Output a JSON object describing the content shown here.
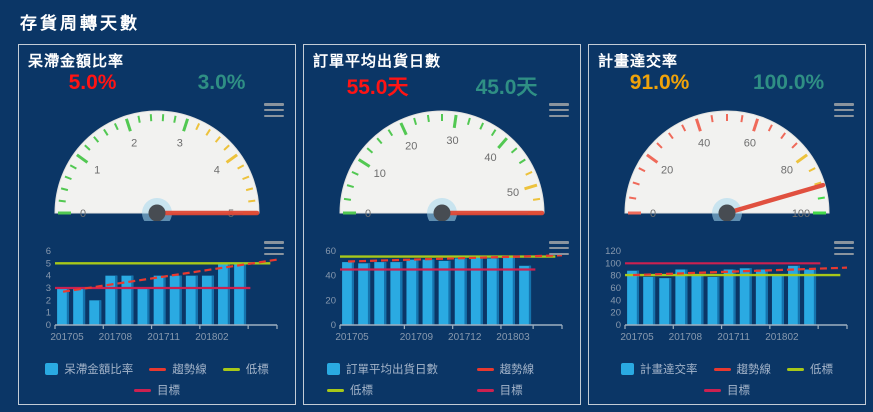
{
  "page": {
    "title": "存貨周轉天數"
  },
  "colors": {
    "background": "#0b3666",
    "panel_border": "#c3ccd6",
    "bar": "#2aaae2",
    "bar_edge": "#1573ad",
    "trend_line": "#e8392f",
    "target_line": "#cc2150",
    "low_line": "#a8c819",
    "axis_text": "#8899ae",
    "gauge_face": "#f2f2f0",
    "gauge_label": "#6e6e6e",
    "needle": "#e04836",
    "hub": "#474c52",
    "hub_halo": "#a8d8ee",
    "value_red": "#ff1414",
    "value_teal": "#2f8f84",
    "value_orange": "#f0a30a"
  },
  "icons": {
    "menu": "hamburger-menu-icon"
  },
  "chart_data": [
    {
      "title": "呆滯金額比率",
      "value_current": {
        "text": "5.0%",
        "color": "#ff1414"
      },
      "value_target": {
        "text": "3.0%",
        "color": "#2f8f84"
      },
      "gauge": {
        "type": "gauge",
        "min": 0,
        "max": 5,
        "value": 5.0,
        "major_step": 1,
        "minor_step": 0.2,
        "labels": [
          "0",
          "1",
          "2",
          "3",
          "4",
          "5"
        ],
        "zones": [
          {
            "to": 3.05,
            "color": "#52c852"
          },
          {
            "to": 5,
            "color": "#edc23c"
          }
        ]
      },
      "bar": {
        "type": "bar",
        "categories": [
          "201705",
          "201706",
          "201707",
          "201708",
          "201709",
          "201710",
          "201711",
          "201712",
          "201801",
          "201802",
          "201803",
          "201804"
        ],
        "values": [
          3,
          3,
          2,
          4,
          4,
          3,
          4,
          4,
          4,
          4,
          5,
          5
        ],
        "ylim": [
          0,
          6
        ],
        "yticks": [
          "0",
          "1",
          "2",
          "3",
          "4",
          "5",
          "6"
        ],
        "xlabels": [
          {
            "index": 0,
            "text": "201705"
          },
          {
            "index": 3,
            "text": "201708"
          },
          {
            "index": 6,
            "text": "201711"
          },
          {
            "index": 9,
            "text": "201802"
          }
        ],
        "target": 3,
        "low": 5,
        "trend": {
          "start": 2.7,
          "end": 5.3
        }
      },
      "legend": [
        {
          "label": "呆滯金額比率",
          "type": "square",
          "color": "#2aaae2"
        },
        {
          "label": "趨勢線",
          "type": "dash",
          "color": "#e8392f"
        },
        {
          "label": "低標",
          "type": "dash",
          "color": "#a8c819"
        },
        {
          "label": "目標",
          "type": "dash",
          "color": "#cc2150"
        }
      ]
    },
    {
      "title": "訂單平均出貨日數",
      "value_current": {
        "text": "55.0天",
        "color": "#ff1414"
      },
      "value_target": {
        "text": "45.0天",
        "color": "#2f8f84"
      },
      "gauge": {
        "type": "gauge",
        "min": 0,
        "max": 55,
        "value": 55.0,
        "major_step": 10,
        "minor_step": 2.5,
        "labels": [
          "0",
          "10",
          "20",
          "30",
          "40",
          "50"
        ],
        "zones": [
          {
            "to": 46,
            "color": "#52c852"
          },
          {
            "to": 55,
            "color": "#edc23c"
          }
        ]
      },
      "bar": {
        "type": "bar",
        "categories": [
          "201705",
          "201706",
          "201707",
          "201708",
          "201709",
          "201710",
          "201711",
          "201712",
          "201801",
          "201802",
          "201803",
          "201804"
        ],
        "values": [
          51,
          50,
          51,
          51,
          53,
          53,
          52,
          54,
          55,
          54,
          56,
          48
        ],
        "ylim": [
          0,
          60
        ],
        "yticks": [
          "0",
          "20",
          "40",
          "60"
        ],
        "xlabels": [
          {
            "index": 0,
            "text": "201705"
          },
          {
            "index": 4,
            "text": "201709"
          },
          {
            "index": 7,
            "text": "201712"
          },
          {
            "index": 10,
            "text": "201803"
          }
        ],
        "target": 45,
        "low": 55.5,
        "trend": {
          "start": 51.5,
          "end": 56.5
        }
      },
      "legend": [
        {
          "label": "訂單平均出貨日數",
          "type": "square",
          "color": "#2aaae2"
        },
        {
          "label": "趨勢線",
          "type": "dash",
          "color": "#e8392f"
        },
        {
          "label": "低標",
          "type": "dash",
          "color": "#a8c819"
        },
        {
          "label": "目標",
          "type": "dash",
          "color": "#cc2150"
        }
      ]
    },
    {
      "title": "計畫達交率",
      "value_current": {
        "text": "91.0%",
        "color": "#f0a30a"
      },
      "value_target": {
        "text": "100.0%",
        "color": "#2f8f84"
      },
      "gauge": {
        "type": "gauge",
        "min": 0,
        "max": 100,
        "value": 91.0,
        "major_step": 20,
        "minor_step": 5,
        "labels": [
          "0",
          "20",
          "40",
          "60",
          "80",
          "100"
        ],
        "zones": [
          {
            "to": 77,
            "color": "#ef6a5a"
          },
          {
            "to": 90,
            "color": "#edc23c"
          },
          {
            "to": 100,
            "color": "#43d94a"
          }
        ]
      },
      "bar": {
        "type": "bar",
        "categories": [
          "201705",
          "201706",
          "201707",
          "201708",
          "201709",
          "201710",
          "201711",
          "201712",
          "201801",
          "201802",
          "201803",
          "201804"
        ],
        "values": [
          88,
          78,
          76,
          90,
          80,
          78,
          90,
          92,
          90,
          80,
          96,
          90
        ],
        "ylim": [
          0,
          120
        ],
        "yticks": [
          "0",
          "20",
          "40",
          "60",
          "80",
          "100",
          "120"
        ],
        "xlabels": [
          {
            "index": 0,
            "text": "201705"
          },
          {
            "index": 3,
            "text": "201708"
          },
          {
            "index": 6,
            "text": "201711"
          },
          {
            "index": 9,
            "text": "201802"
          }
        ],
        "target": 100,
        "low": 81,
        "trend": {
          "start": 81,
          "end": 93
        }
      },
      "legend": [
        {
          "label": "計畫達交率",
          "type": "square",
          "color": "#2aaae2"
        },
        {
          "label": "趨勢線",
          "type": "dash",
          "color": "#e8392f"
        },
        {
          "label": "低標",
          "type": "dash",
          "color": "#a8c819"
        },
        {
          "label": "目標",
          "type": "dash",
          "color": "#cc2150"
        }
      ]
    }
  ]
}
